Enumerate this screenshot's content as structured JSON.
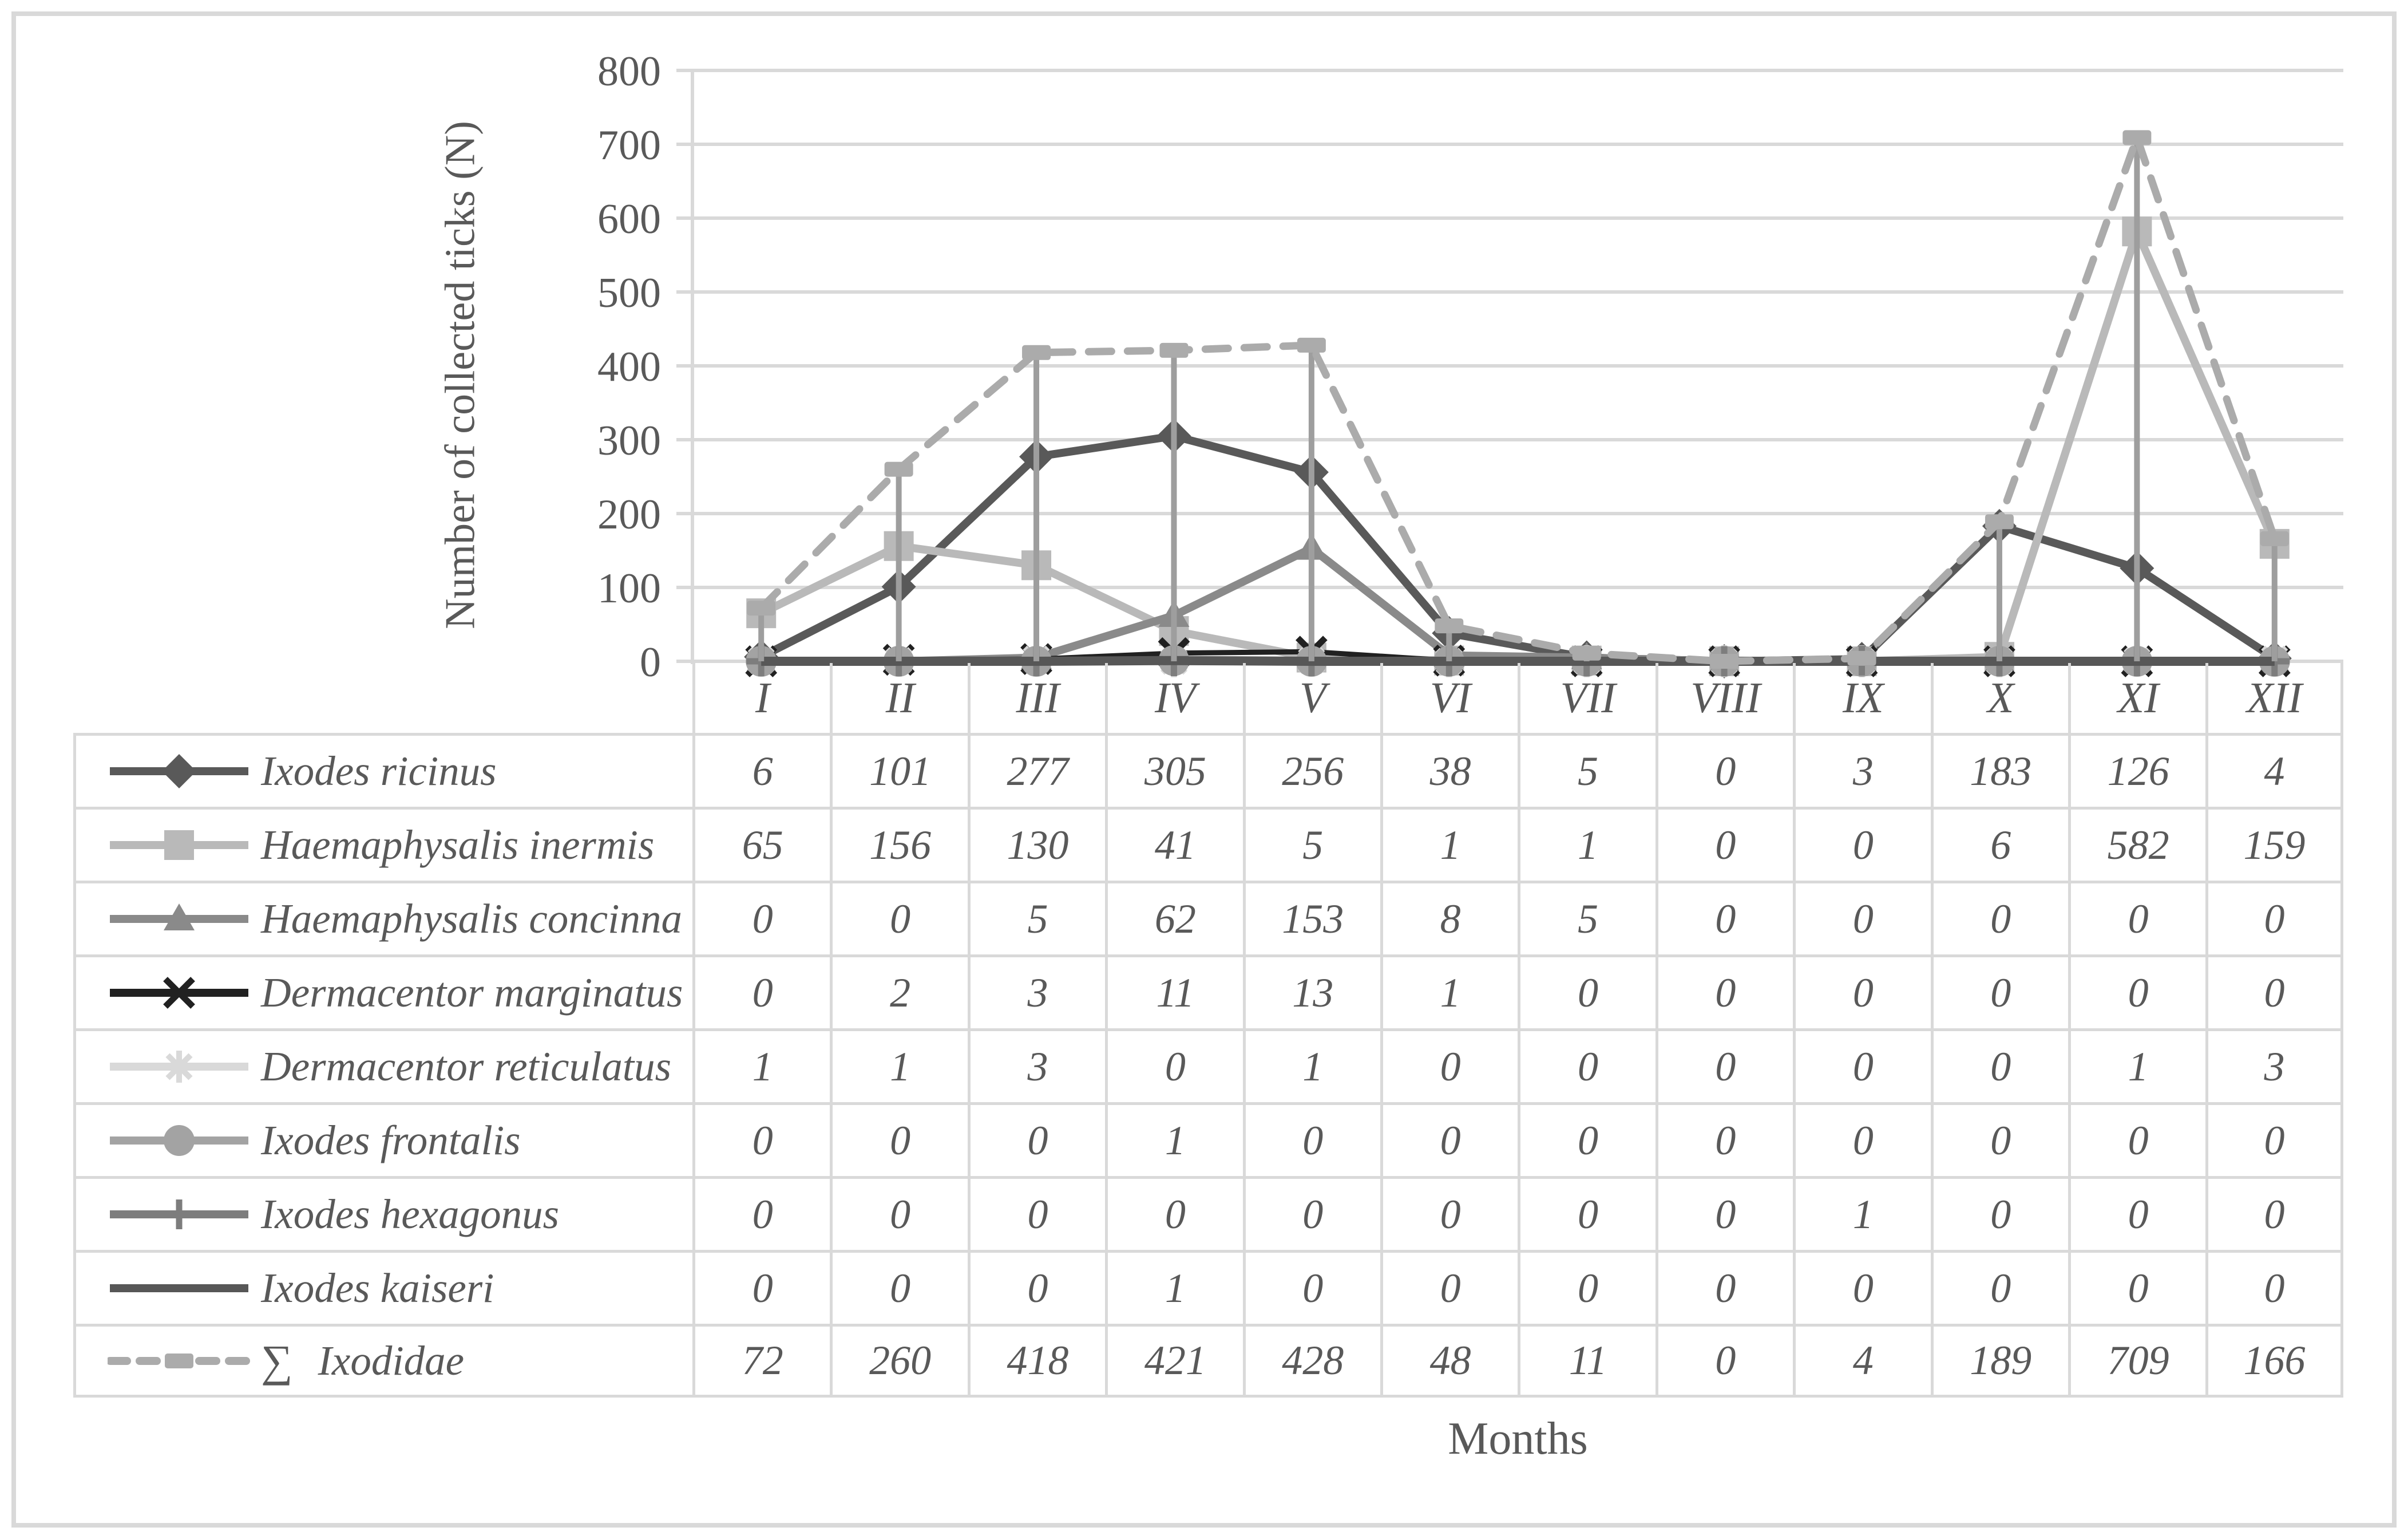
{
  "chart_data": {
    "type": "line",
    "title": "",
    "xlabel": "Months",
    "ylabel": "Number of collected ticks (N)",
    "categories": [
      "I",
      "II",
      "III",
      "IV",
      "V",
      "VI",
      "VII",
      "VIII",
      "IX",
      "X",
      "XI",
      "XII"
    ],
    "ylim": [
      0,
      800
    ],
    "y_ticks": [
      0,
      100,
      200,
      300,
      400,
      500,
      600,
      700,
      800
    ],
    "grid": "horizontal-only",
    "legend_position": "table-left-column",
    "drop_lines": true,
    "drop_lines_follow": "sum series",
    "series": [
      {
        "label": "Ixodes ricinus",
        "prefix": "",
        "marker": "diamond",
        "color": "#595959",
        "line_width": 14,
        "dash": null,
        "values": [
          6,
          101,
          277,
          305,
          256,
          38,
          5,
          0,
          3,
          183,
          126,
          4
        ]
      },
      {
        "label": "Haemaphysalis inermis",
        "prefix": "",
        "marker": "square",
        "color": "#b9b9b9",
        "line_width": 14,
        "dash": null,
        "values": [
          65,
          156,
          130,
          41,
          5,
          1,
          1,
          0,
          0,
          6,
          582,
          159
        ]
      },
      {
        "label": "Haemaphysalis concinna",
        "prefix": "",
        "marker": "triangle",
        "color": "#8a8a8a",
        "line_width": 14,
        "dash": null,
        "values": [
          0,
          0,
          5,
          62,
          153,
          8,
          5,
          0,
          0,
          0,
          0,
          0
        ]
      },
      {
        "label": "Dermacentor marginatus",
        "prefix": "",
        "marker": "x",
        "color": "#212121",
        "line_width": 9,
        "dash": null,
        "values": [
          0,
          2,
          3,
          11,
          13,
          1,
          0,
          0,
          0,
          0,
          0,
          0
        ]
      },
      {
        "label": "Dermacentor reticulatus",
        "prefix": "",
        "marker": "asterisk",
        "color": "#d9d9d9",
        "line_width": 9,
        "dash": null,
        "values": [
          1,
          1,
          3,
          0,
          1,
          0,
          0,
          0,
          0,
          0,
          1,
          3
        ]
      },
      {
        "label": "Ixodes frontalis",
        "prefix": "",
        "marker": "circle",
        "color": "#a3a3a3",
        "line_width": 13,
        "dash": null,
        "values": [
          0,
          0,
          0,
          1,
          0,
          0,
          0,
          0,
          0,
          0,
          0,
          0
        ]
      },
      {
        "label": "Ixodes hexagonus",
        "prefix": "",
        "marker": "plus",
        "color": "#7d7d7d",
        "line_width": 13,
        "dash": null,
        "values": [
          0,
          0,
          0,
          0,
          0,
          0,
          0,
          0,
          1,
          0,
          0,
          0
        ]
      },
      {
        "label": "Ixodes kaiseri",
        "prefix": "",
        "marker": "none",
        "color": "#575757",
        "line_width": 16,
        "dash": null,
        "values": [
          0,
          0,
          0,
          1,
          0,
          0,
          0,
          0,
          0,
          0,
          0,
          0
        ]
      },
      {
        "label": "Ixodidae",
        "prefix": "∑",
        "marker": "dash-square",
        "color": "#ababab",
        "line_width": 13,
        "dash": [
          40,
          28
        ],
        "values": [
          72,
          260,
          418,
          421,
          428,
          48,
          11,
          0,
          4,
          189,
          709,
          166
        ]
      }
    ]
  },
  "colors": {
    "grid": "#d9d9d9",
    "axis": "#d9d9d9",
    "drop_line": "#9e9e9e",
    "table_border": "#d9d9d9",
    "text": "#595959",
    "page_border": "#d9d9d9",
    "background": "#ffffff"
  }
}
